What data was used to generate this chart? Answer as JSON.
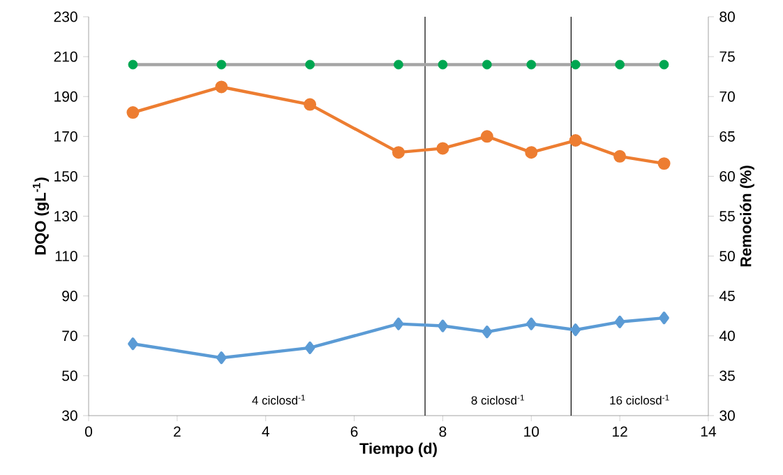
{
  "chart_data": {
    "type": "line",
    "xlabel": "Tiempo (d)",
    "ylabel": "DQO (gL$^{-1}$)",
    "y2label": "Remoción (%)",
    "x": [
      1,
      3,
      5,
      7,
      8,
      9,
      10,
      11,
      12,
      13
    ],
    "series": [
      {
        "color": "#a5a5a5",
        "colors": [
          "#00a651",
          "#00a651",
          "#00a651",
          "#00a651",
          "#00a651",
          "#00a651",
          "#00a651",
          "#00a651",
          "#00a651",
          "#00a651"
        ],
        "marker": "circle",
        "values": [
          206,
          206,
          206,
          206,
          206,
          206,
          206,
          206,
          206,
          206
        ]
      },
      {
        "color": "#ed7d31",
        "marker": "circle",
        "axis": "y2",
        "values": [
          68.0,
          71.2,
          69.0,
          63.0,
          63.5,
          65.0,
          63.0,
          64.5,
          62.5,
          61.6
        ]
      },
      {
        "color": "#5b9bd5",
        "marker": "diamond",
        "values": [
          66,
          59,
          64,
          76,
          75,
          72,
          76,
          73,
          77,
          79
        ]
      }
    ],
    "xlim": [
      0,
      14
    ],
    "xticks": [
      0,
      2,
      4,
      6,
      8,
      10,
      12,
      14
    ],
    "ylim": [
      30,
      230
    ],
    "yticks": [
      30,
      50,
      70,
      90,
      110,
      130,
      150,
      170,
      190,
      210,
      230
    ],
    "y2lim": [
      30,
      80
    ],
    "y2ticks": [
      30,
      35,
      40,
      45,
      50,
      55,
      60,
      65,
      70,
      75,
      80
    ],
    "ref_lines": [
      {
        "axis": "x",
        "value": 7.6,
        "color": "#000000"
      },
      {
        "axis": "x",
        "value": 10.9,
        "color": "#000000"
      }
    ],
    "annotations": [
      "4 ciclosd$^{-1}$",
      "8 ciclosd$^{-1}$",
      "16 ciclosd$^{-1}$"
    ],
    "grid": false
  }
}
